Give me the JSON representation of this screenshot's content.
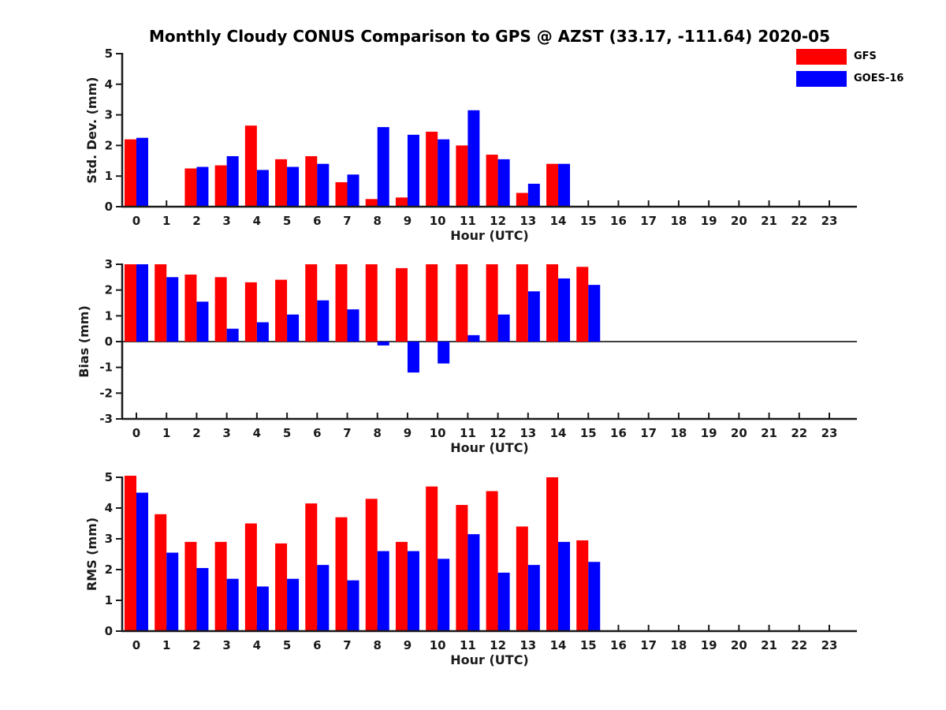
{
  "title": "Monthly Cloudy CONUS Comparison to GPS @ AZST (33.17, -111.64) 2020-05",
  "legend": {
    "items": [
      {
        "label": "GFS",
        "color": "#ff0000"
      },
      {
        "label": "GOES-16",
        "color": "#0000ff"
      }
    ]
  },
  "chart_data": [
    {
      "type": "bar",
      "ylabel": "Std. Dev. (mm)",
      "xlabel": "Hour (UTC)",
      "ylim": [
        0,
        5
      ],
      "yticks": [
        0,
        1,
        2,
        3,
        4,
        5
      ],
      "grid": false,
      "legend_position": "top-right-outside",
      "categories": [
        "0",
        "1",
        "2",
        "3",
        "4",
        "5",
        "6",
        "7",
        "8",
        "9",
        "10",
        "11",
        "12",
        "13",
        "14",
        "15",
        "16",
        "17",
        "18",
        "19",
        "20",
        "21",
        "22",
        "23"
      ],
      "series": [
        {
          "name": "GFS",
          "color": "#ff0000",
          "values": [
            2.2,
            null,
            1.25,
            1.35,
            2.65,
            1.55,
            1.65,
            0.8,
            0.25,
            0.3,
            2.45,
            2.0,
            1.7,
            0.45,
            1.4,
            null,
            null,
            null,
            null,
            null,
            null,
            null,
            null,
            null
          ]
        },
        {
          "name": "GOES-16",
          "color": "#0000ff",
          "values": [
            2.25,
            null,
            1.3,
            1.65,
            1.2,
            1.3,
            1.4,
            1.05,
            2.6,
            2.35,
            2.2,
            3.15,
            1.55,
            0.75,
            1.4,
            null,
            null,
            null,
            null,
            null,
            null,
            null,
            null,
            null
          ]
        }
      ]
    },
    {
      "type": "bar",
      "ylabel": "Bias (mm)",
      "xlabel": "Hour (UTC)",
      "ylim": [
        -3,
        3
      ],
      "yticks": [
        3,
        2,
        1,
        0,
        -1,
        -2,
        -3
      ],
      "zero_line": true,
      "grid": false,
      "categories": [
        "0",
        "1",
        "2",
        "3",
        "4",
        "5",
        "6",
        "7",
        "8",
        "9",
        "10",
        "11",
        "12",
        "13",
        "14",
        "15",
        "16",
        "17",
        "18",
        "19",
        "20",
        "21",
        "22",
        "23"
      ],
      "series": [
        {
          "name": "GFS",
          "color": "#ff0000",
          "values": [
            3.0,
            3.0,
            2.6,
            2.5,
            2.3,
            2.4,
            3.0,
            3.0,
            3.0,
            2.85,
            3.0,
            3.0,
            3.0,
            3.0,
            3.0,
            2.9,
            null,
            null,
            null,
            null,
            null,
            null,
            null,
            null
          ]
        },
        {
          "name": "GOES-16",
          "color": "#0000ff",
          "values": [
            3.0,
            2.5,
            1.55,
            0.5,
            0.75,
            1.05,
            1.6,
            1.25,
            -0.15,
            -1.2,
            -0.85,
            0.25,
            1.05,
            1.95,
            2.45,
            2.2,
            null,
            null,
            null,
            null,
            null,
            null,
            null,
            null
          ]
        }
      ]
    },
    {
      "type": "bar",
      "ylabel": "RMS (mm)",
      "xlabel": "Hour (UTC)",
      "ylim": [
        0,
        5
      ],
      "yticks": [
        0,
        1,
        2,
        3,
        4,
        5
      ],
      "grid": false,
      "categories": [
        "0",
        "1",
        "2",
        "3",
        "4",
        "5",
        "6",
        "7",
        "8",
        "9",
        "10",
        "11",
        "12",
        "13",
        "14",
        "15",
        "16",
        "17",
        "18",
        "19",
        "20",
        "21",
        "22",
        "23"
      ],
      "series": [
        {
          "name": "GFS",
          "color": "#ff0000",
          "values": [
            5.05,
            3.8,
            2.9,
            2.9,
            3.5,
            2.85,
            4.15,
            3.7,
            4.3,
            2.9,
            4.7,
            4.1,
            4.55,
            3.4,
            5.0,
            2.95,
            null,
            null,
            null,
            null,
            null,
            null,
            null,
            null
          ]
        },
        {
          "name": "GOES-16",
          "color": "#0000ff",
          "values": [
            4.5,
            2.55,
            2.05,
            1.7,
            1.45,
            1.7,
            2.15,
            1.65,
            2.6,
            2.6,
            2.35,
            3.15,
            1.9,
            2.15,
            2.9,
            2.25,
            null,
            null,
            null,
            null,
            null,
            null,
            null,
            null
          ]
        }
      ]
    }
  ]
}
